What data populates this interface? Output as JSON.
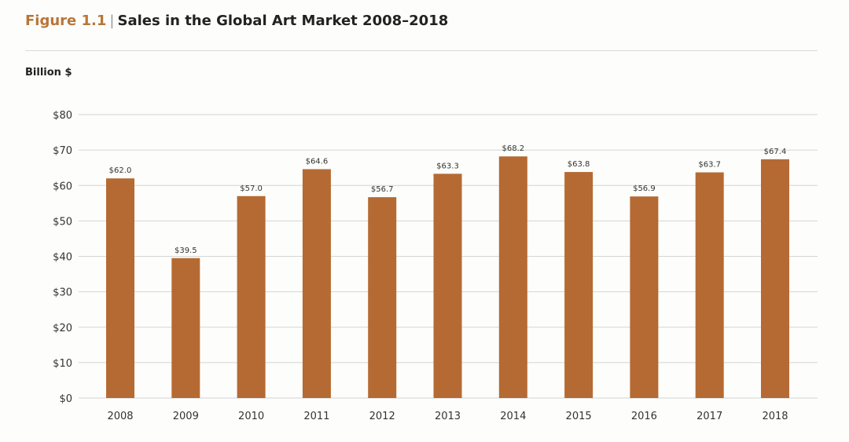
{
  "header": {
    "figure_label": "Figure 1.1",
    "separator": "|",
    "title": "Sales in the Global Art Market 2008–2018"
  },
  "colors": {
    "bar": "#b56a33",
    "accent": "#b97538",
    "grid": "#d4d4d4"
  },
  "chart_data": {
    "type": "bar",
    "title": "Sales in the Global Art Market 2008–2018",
    "ylabel": "Billion $",
    "xlabel": "",
    "ylim": [
      0,
      80
    ],
    "yticks": [
      0,
      10,
      20,
      30,
      40,
      50,
      60,
      70,
      80
    ],
    "ytick_labels": [
      "$0",
      "$10",
      "$20",
      "$30",
      "$40",
      "$50",
      "$60",
      "$70",
      "$80"
    ],
    "grid": true,
    "legend": "none",
    "categories": [
      "2008",
      "2009",
      "2010",
      "2011",
      "2012",
      "2013",
      "2014",
      "2015",
      "2016",
      "2017",
      "2018"
    ],
    "values": [
      62.0,
      39.5,
      57.0,
      64.6,
      56.7,
      63.3,
      68.2,
      63.8,
      56.9,
      63.7,
      67.4
    ],
    "data_labels": [
      "$62.0",
      "$39.5",
      "$57.0",
      "$64.6",
      "$56.7",
      "$63.3",
      "$68.2",
      "$63.8",
      "$56.9",
      "$63.7",
      "$67.4"
    ]
  }
}
